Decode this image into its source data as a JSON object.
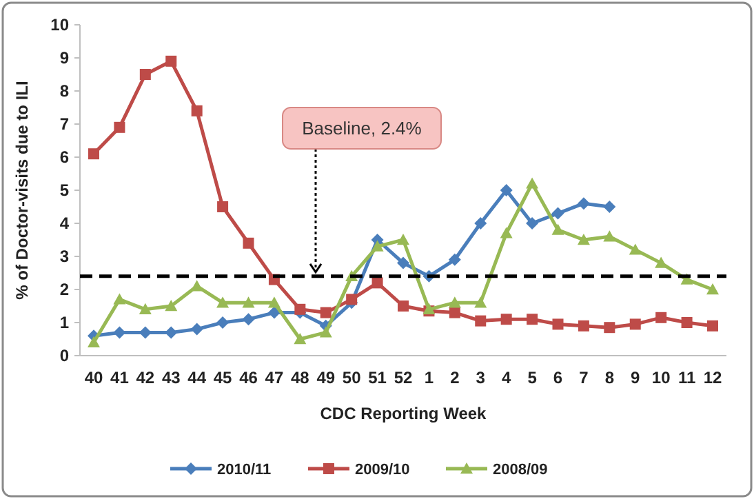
{
  "chart_data": {
    "type": "line",
    "xlabel": "CDC Reporting Week",
    "ylabel": "% of Doctor-visits due to ILI",
    "categories": [
      "40",
      "41",
      "42",
      "43",
      "44",
      "45",
      "46",
      "47",
      "48",
      "49",
      "50",
      "51",
      "52",
      "1",
      "2",
      "3",
      "4",
      "5",
      "6",
      "7",
      "8",
      "9",
      "10",
      "11",
      "12"
    ],
    "series": [
      {
        "name": "2010/11",
        "color": "#4a7ebb",
        "marker": "diamond",
        "values": [
          0.6,
          0.7,
          0.7,
          0.7,
          0.8,
          1.0,
          1.1,
          1.3,
          1.3,
          0.9,
          1.6,
          3.5,
          2.8,
          2.4,
          2.9,
          4.0,
          5.0,
          4.0,
          4.3,
          4.6,
          4.5,
          null,
          null,
          null,
          null
        ]
      },
      {
        "name": "2009/10",
        "color": "#be4b48",
        "marker": "square",
        "values": [
          6.1,
          6.9,
          8.5,
          8.9,
          7.4,
          4.5,
          3.4,
          2.3,
          1.4,
          1.3,
          1.7,
          2.2,
          1.5,
          1.35,
          1.3,
          1.05,
          1.1,
          1.1,
          0.95,
          0.9,
          0.85,
          0.95,
          1.15,
          1.0,
          0.9
        ]
      },
      {
        "name": "2008/09",
        "color": "#98b954",
        "marker": "triangle",
        "values": [
          0.4,
          1.7,
          1.4,
          1.5,
          2.1,
          1.6,
          1.6,
          1.6,
          0.5,
          0.7,
          2.4,
          3.3,
          3.5,
          1.4,
          1.6,
          1.6,
          3.7,
          5.2,
          3.8,
          3.5,
          3.6,
          3.2,
          2.8,
          2.3,
          2.0
        ]
      }
    ],
    "ylim": [
      0,
      10
    ],
    "yticks": [
      0,
      1,
      2,
      3,
      4,
      5,
      6,
      7,
      8,
      9,
      10
    ],
    "ref_lines": [
      {
        "axis": "y",
        "value": 2.4,
        "label": "Baseline, 2.4%",
        "line_style": "dashed",
        "color": "#000000"
      }
    ],
    "legend": "bottom",
    "grid": false
  }
}
